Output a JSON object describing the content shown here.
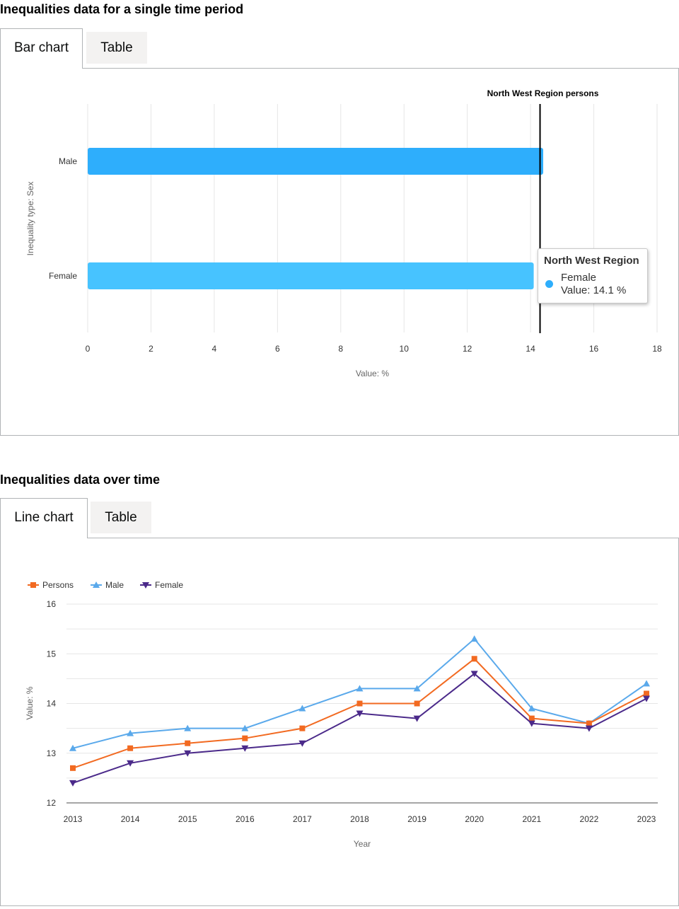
{
  "section1": {
    "title": "Inequalities data for a single time period",
    "tabs": [
      {
        "label": "Bar chart",
        "active": true
      },
      {
        "label": "Table",
        "active": false
      }
    ]
  },
  "section2": {
    "title": "Inequalities data over time",
    "tabs": [
      {
        "label": "Line chart",
        "active": true
      },
      {
        "label": "Table",
        "active": false
      }
    ]
  },
  "tooltip": {
    "title": "North West Region",
    "series": "Female",
    "value_text": "Value: 14.1 %",
    "color": "#2eaefc"
  },
  "chart_data": [
    {
      "type": "bar",
      "orientation": "horizontal",
      "categories": [
        "Male",
        "Female"
      ],
      "values": [
        14.4,
        14.1
      ],
      "colors": [
        "#2eaefc",
        "#47c3ff"
      ],
      "xlabel": "Value: %",
      "ylabel": "Inequality type: Sex",
      "xlim": [
        0,
        18
      ],
      "xticks": [
        "0",
        "2",
        "4",
        "6",
        "8",
        "10",
        "12",
        "14",
        "16",
        "18"
      ],
      "reference_line": {
        "label": "North West Region persons",
        "value": 14.3
      },
      "grid": "vertical"
    },
    {
      "type": "line",
      "x": [
        "2013",
        "2014",
        "2015",
        "2016",
        "2017",
        "2018",
        "2019",
        "2020",
        "2021",
        "2022",
        "2023"
      ],
      "series": [
        {
          "name": "Persons",
          "color": "#f26a21",
          "marker": "square",
          "values": [
            12.7,
            13.1,
            13.2,
            13.3,
            13.5,
            14.0,
            14.0,
            14.9,
            13.7,
            13.6,
            14.2
          ]
        },
        {
          "name": "Male",
          "color": "#5aa9eb",
          "marker": "triangle-up",
          "values": [
            13.1,
            13.4,
            13.5,
            13.5,
            13.9,
            14.3,
            14.3,
            15.3,
            13.9,
            13.6,
            14.4
          ]
        },
        {
          "name": "Female",
          "color": "#4b2a8a",
          "marker": "triangle-down",
          "values": [
            12.4,
            12.8,
            13.0,
            13.1,
            13.2,
            13.8,
            13.7,
            14.6,
            13.6,
            13.5,
            14.1
          ]
        }
      ],
      "xlabel": "Year",
      "ylabel": "Value: %",
      "ylim": [
        12,
        16
      ],
      "yticks": [
        "12",
        "13",
        "14",
        "15",
        "16"
      ],
      "legend": "top-left",
      "grid": "horizontal"
    }
  ]
}
